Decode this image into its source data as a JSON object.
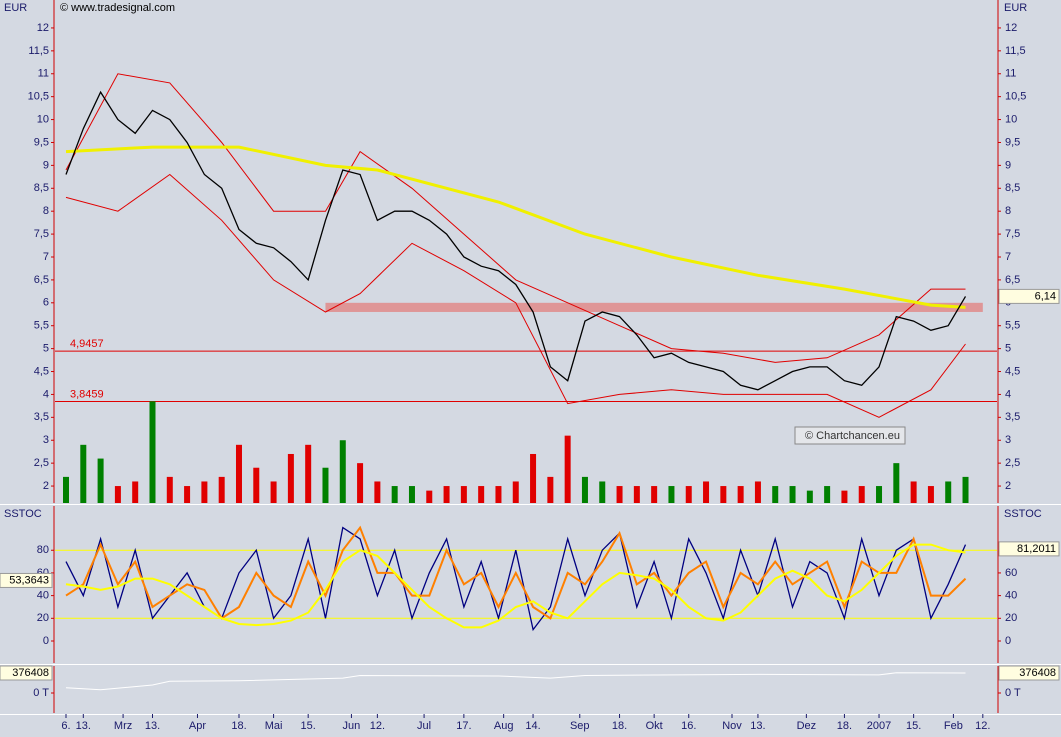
{
  "chart_data": [
    {
      "type": "line",
      "y_label": "EUR",
      "source": "© www.tradesignal.com",
      "watermark": "© Chartchancen.eu",
      "ylim": [
        1.63,
        12.61
      ],
      "yticks": [
        2,
        {
          "value": 2.5,
          "label": "2,5"
        },
        3,
        {
          "value": 3.5,
          "label": "3,5"
        },
        4,
        {
          "value": 4.5,
          "label": "4,5"
        },
        5,
        {
          "value": 5.5,
          "label": "5,5"
        },
        6,
        {
          "value": 6.5,
          "label": "6,5"
        },
        7,
        {
          "value": 7.5,
          "label": "7,5"
        },
        8,
        {
          "value": 8.5,
          "label": "8,5"
        },
        9,
        {
          "value": 9.5,
          "label": "9,5"
        },
        10,
        {
          "value": 10.5,
          "label": "10,5"
        },
        11,
        {
          "value": 11.5,
          "label": "11,5"
        },
        12
      ],
      "last": {
        "value": 6.14,
        "label": "6,14"
      },
      "levels": [
        {
          "value": 4.9457,
          "label": "4,9457",
          "color": "#e00000"
        },
        {
          "value": 3.8459,
          "label": "3,8459",
          "color": "#e00000"
        }
      ],
      "band": {
        "from": 5.8,
        "to": 6.0,
        "color": "#e08a8a"
      },
      "series": [
        {
          "color": "#e00000",
          "width": 1,
          "x": [
            0,
            3,
            6,
            9,
            12,
            15,
            17,
            20,
            23,
            26,
            29,
            32,
            35,
            38,
            41,
            44,
            47,
            50,
            52
          ],
          "values": [
            8.9,
            11.0,
            10.8,
            9.5,
            8.0,
            8.0,
            9.3,
            8.5,
            7.5,
            6.5,
            6.0,
            5.5,
            5.0,
            4.9,
            4.7,
            4.8,
            5.3,
            6.3,
            6.3
          ]
        },
        {
          "color": "#e00000",
          "width": 1,
          "x": [
            0,
            3,
            6,
            9,
            12,
            15,
            17,
            20,
            23,
            26,
            29,
            32,
            35,
            38,
            41,
            44,
            47,
            50,
            52
          ],
          "values": [
            8.3,
            8.0,
            8.8,
            7.8,
            6.5,
            5.8,
            6.2,
            7.3,
            6.7,
            6.0,
            3.8,
            4.0,
            4.1,
            4.0,
            4.0,
            4.0,
            3.5,
            4.1,
            5.1
          ]
        },
        {
          "color": "#f0f000",
          "width": 3,
          "x": [
            0,
            5,
            10,
            15,
            18,
            25,
            30,
            35,
            40,
            45,
            50,
            52
          ],
          "values": [
            9.3,
            9.4,
            9.4,
            9.0,
            8.9,
            8.2,
            7.5,
            7.0,
            6.6,
            6.3,
            5.95,
            5.9
          ]
        },
        {
          "color": "#000000",
          "width": 1.3,
          "x": [
            0,
            1,
            2,
            3,
            4,
            5,
            6,
            7,
            8,
            9,
            10,
            11,
            12,
            13,
            14,
            15,
            16,
            17,
            18,
            19,
            20,
            21,
            22,
            23,
            24,
            25,
            26,
            27,
            28,
            29,
            30,
            31,
            32,
            33,
            34,
            35,
            36,
            37,
            38,
            39,
            40,
            41,
            42,
            43,
            44,
            45,
            46,
            47,
            48,
            49,
            50,
            51,
            52
          ],
          "values": [
            8.8,
            9.8,
            10.6,
            10.0,
            9.7,
            10.2,
            10.0,
            9.5,
            8.8,
            8.5,
            7.6,
            7.3,
            7.2,
            6.9,
            6.5,
            7.8,
            8.9,
            8.8,
            7.8,
            8.0,
            8.0,
            7.8,
            7.5,
            7.0,
            6.8,
            6.7,
            6.4,
            5.8,
            4.6,
            4.3,
            5.6,
            5.8,
            5.7,
            5.3,
            4.8,
            4.9,
            4.7,
            4.6,
            4.5,
            4.2,
            4.1,
            4.3,
            4.5,
            4.6,
            4.6,
            4.3,
            4.2,
            4.6,
            5.7,
            5.6,
            5.4,
            5.5,
            6.14
          ]
        }
      ],
      "volume": [
        2.2,
        2.9,
        2.6,
        2.0,
        2.1,
        3.85,
        2.2,
        2.0,
        2.1,
        2.2,
        2.9,
        2.4,
        2.1,
        2.7,
        2.9,
        2.4,
        3.0,
        2.5,
        2.1,
        2.0,
        2.0,
        1.9,
        2.0,
        2.0,
        2.0,
        2.0,
        2.1,
        2.7,
        2.2,
        3.1,
        2.2,
        2.1,
        2.0,
        2.0,
        2.0,
        2.0,
        2.0,
        2.1,
        2.0,
        2.0,
        2.1,
        2.0,
        2.0,
        1.9,
        2.0,
        1.9,
        2.0,
        2.0,
        2.5,
        2.1,
        2.0,
        2.1,
        2.2
      ]
    },
    {
      "type": "line",
      "y_label": "SSTOC",
      "ylim": [
        -19.4,
        119
      ],
      "yticks": [
        0,
        20,
        40,
        60,
        80
      ],
      "levels": [
        {
          "value": 20,
          "color": "#ffff00"
        },
        {
          "value": 80,
          "color": "#ffff00"
        }
      ],
      "left_value": {
        "value": 53.3643,
        "label": "53,3643"
      },
      "last": {
        "value": 81.2011,
        "label": "81,2011"
      },
      "series": [
        {
          "color": "#000080",
          "width": 1.3,
          "x": [
            0,
            1,
            2,
            3,
            4,
            5,
            6,
            7,
            8,
            9,
            10,
            11,
            12,
            13,
            14,
            15,
            16,
            17,
            18,
            19,
            20,
            21,
            22,
            23,
            24,
            25,
            26,
            27,
            28,
            29,
            30,
            31,
            32,
            33,
            34,
            35,
            36,
            37,
            38,
            39,
            40,
            41,
            42,
            43,
            44,
            45,
            46,
            47,
            48,
            49,
            50,
            51,
            52
          ],
          "values": [
            70,
            40,
            90,
            30,
            80,
            20,
            40,
            60,
            30,
            20,
            60,
            80,
            20,
            40,
            90,
            20,
            100,
            90,
            40,
            80,
            20,
            60,
            90,
            30,
            70,
            20,
            80,
            10,
            30,
            90,
            40,
            80,
            95,
            30,
            70,
            20,
            90,
            60,
            20,
            80,
            40,
            90,
            30,
            70,
            60,
            20,
            90,
            40,
            80,
            90,
            20,
            50,
            85
          ]
        },
        {
          "color": "#ff8000",
          "width": 2,
          "x": [
            0,
            1,
            2,
            3,
            4,
            5,
            6,
            7,
            8,
            9,
            10,
            11,
            12,
            13,
            14,
            15,
            16,
            17,
            18,
            19,
            20,
            21,
            22,
            23,
            24,
            25,
            26,
            27,
            28,
            29,
            30,
            31,
            32,
            33,
            34,
            35,
            36,
            37,
            38,
            39,
            40,
            41,
            42,
            43,
            44,
            45,
            46,
            47,
            48,
            49,
            50,
            51,
            52
          ],
          "values": [
            40,
            50,
            85,
            50,
            70,
            30,
            40,
            50,
            45,
            20,
            30,
            60,
            40,
            30,
            70,
            40,
            80,
            100,
            60,
            60,
            40,
            40,
            80,
            50,
            60,
            30,
            60,
            30,
            20,
            60,
            50,
            70,
            95,
            50,
            60,
            40,
            60,
            70,
            30,
            60,
            50,
            70,
            50,
            60,
            70,
            30,
            70,
            60,
            60,
            90,
            40,
            40,
            55
          ]
        },
        {
          "color": "#ffff00",
          "width": 2,
          "x": [
            0,
            1,
            2,
            3,
            4,
            5,
            6,
            7,
            8,
            9,
            10,
            11,
            12,
            13,
            14,
            15,
            16,
            17,
            18,
            19,
            20,
            21,
            22,
            23,
            24,
            25,
            26,
            27,
            28,
            29,
            30,
            31,
            32,
            33,
            34,
            35,
            36,
            37,
            38,
            39,
            40,
            41,
            42,
            43,
            44,
            45,
            46,
            47,
            48,
            49,
            50,
            51,
            52
          ],
          "values": [
            50,
            48,
            45,
            48,
            55,
            55,
            50,
            40,
            30,
            20,
            15,
            14,
            15,
            18,
            25,
            45,
            70,
            80,
            75,
            60,
            45,
            30,
            20,
            12,
            12,
            18,
            30,
            35,
            25,
            20,
            35,
            50,
            60,
            58,
            55,
            45,
            30,
            20,
            18,
            25,
            40,
            55,
            62,
            55,
            40,
            35,
            45,
            60,
            75,
            85,
            85,
            80,
            78
          ]
        }
      ]
    },
    {
      "type": "line",
      "ylim": [
        -376400,
        508100
      ],
      "yticks": [
        {
          "value": 0,
          "label": "0 T"
        }
      ],
      "left_value": {
        "value": 376408,
        "label": "376408"
      },
      "last": {
        "value": 376408,
        "label": "376408"
      },
      "series": [
        {
          "color": "#ffffff",
          "width": 1,
          "x": [
            0,
            2,
            5,
            6,
            10,
            16,
            17,
            25,
            28,
            30,
            40,
            47,
            48,
            52
          ],
          "values": [
            100000,
            60000,
            150000,
            220000,
            230000,
            280000,
            330000,
            320000,
            280000,
            330000,
            350000,
            340000,
            380000,
            376408
          ]
        }
      ],
      "xlim": [
        -0.636,
        53.82
      ],
      "xticks": [
        {
          "value": 0,
          "label": "6."
        },
        {
          "value": 1,
          "label": "13."
        },
        {
          "value": 3.3,
          "label": "Mrz"
        },
        {
          "value": 5,
          "label": "13."
        },
        {
          "value": 7.6,
          "label": "Apr"
        },
        {
          "value": 10,
          "label": "18."
        },
        {
          "value": 12,
          "label": "Mai"
        },
        {
          "value": 14,
          "label": "15."
        },
        {
          "value": 16.5,
          "label": "Jun"
        },
        {
          "value": 18,
          "label": "12."
        },
        {
          "value": 20.7,
          "label": "Jul"
        },
        {
          "value": 23,
          "label": "17."
        },
        {
          "value": 25.3,
          "label": "Aug"
        },
        {
          "value": 27,
          "label": "14."
        },
        {
          "value": 29.7,
          "label": "Sep"
        },
        {
          "value": 32,
          "label": "18."
        },
        {
          "value": 34,
          "label": "Okt"
        },
        {
          "value": 36,
          "label": "16."
        },
        {
          "value": 38.5,
          "label": "Nov"
        },
        {
          "value": 40,
          "label": "13."
        },
        {
          "value": 42.8,
          "label": "Dez"
        },
        {
          "value": 45,
          "label": "18."
        },
        {
          "value": 47,
          "label": "2007"
        },
        {
          "value": 49,
          "label": "15."
        },
        {
          "value": 51.3,
          "label": "Feb"
        },
        {
          "value": 53,
          "label": "12."
        }
      ]
    }
  ]
}
